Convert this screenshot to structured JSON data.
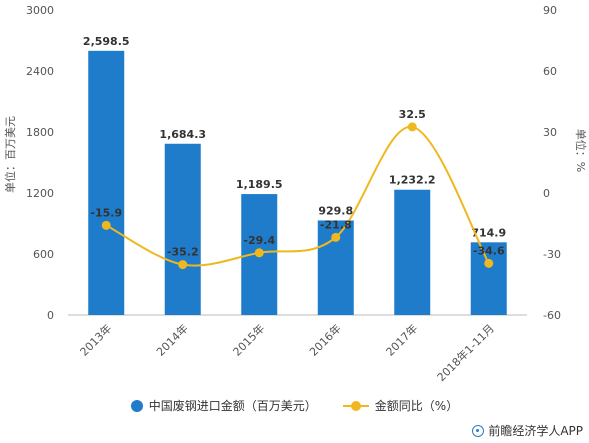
{
  "chart_data": {
    "type": "bar",
    "categories": [
      "2013年",
      "2014年",
      "2015年",
      "2016年",
      "2017年",
      "2018年1-11月"
    ],
    "series": [
      {
        "name": "中国废钢进口金额（百万美元）",
        "type": "bar",
        "axis": "left",
        "color": "#1f7ccb",
        "values": [
          2598.5,
          1684.3,
          1189.5,
          929.8,
          1232.2,
          714.9
        ],
        "labels": [
          "2,598.5",
          "1,684.3",
          "1,189.5",
          "929.8",
          "1,232.2",
          "714.9"
        ]
      },
      {
        "name": "金额同比（%）",
        "type": "line",
        "axis": "right",
        "color": "#f0b81f",
        "values": [
          -15.9,
          -35.2,
          -29.4,
          -21.8,
          32.5,
          -34.6
        ],
        "labels": [
          "-15.9",
          "-35.2",
          "-29.4",
          "-21.8",
          "32.5",
          "-34.6"
        ]
      }
    ],
    "y_left": {
      "label": "单位：百万美元",
      "ylim": [
        0,
        3000
      ],
      "ticks": [
        0,
        600,
        1200,
        1800,
        2400,
        3000
      ]
    },
    "y_right": {
      "label": "单位：%",
      "ylim": [
        -60,
        90
      ],
      "ticks": [
        -60,
        -30,
        0,
        30,
        60,
        90
      ]
    },
    "grid": false,
    "legend": "bottom"
  },
  "source": "前瞻经济学人APP"
}
